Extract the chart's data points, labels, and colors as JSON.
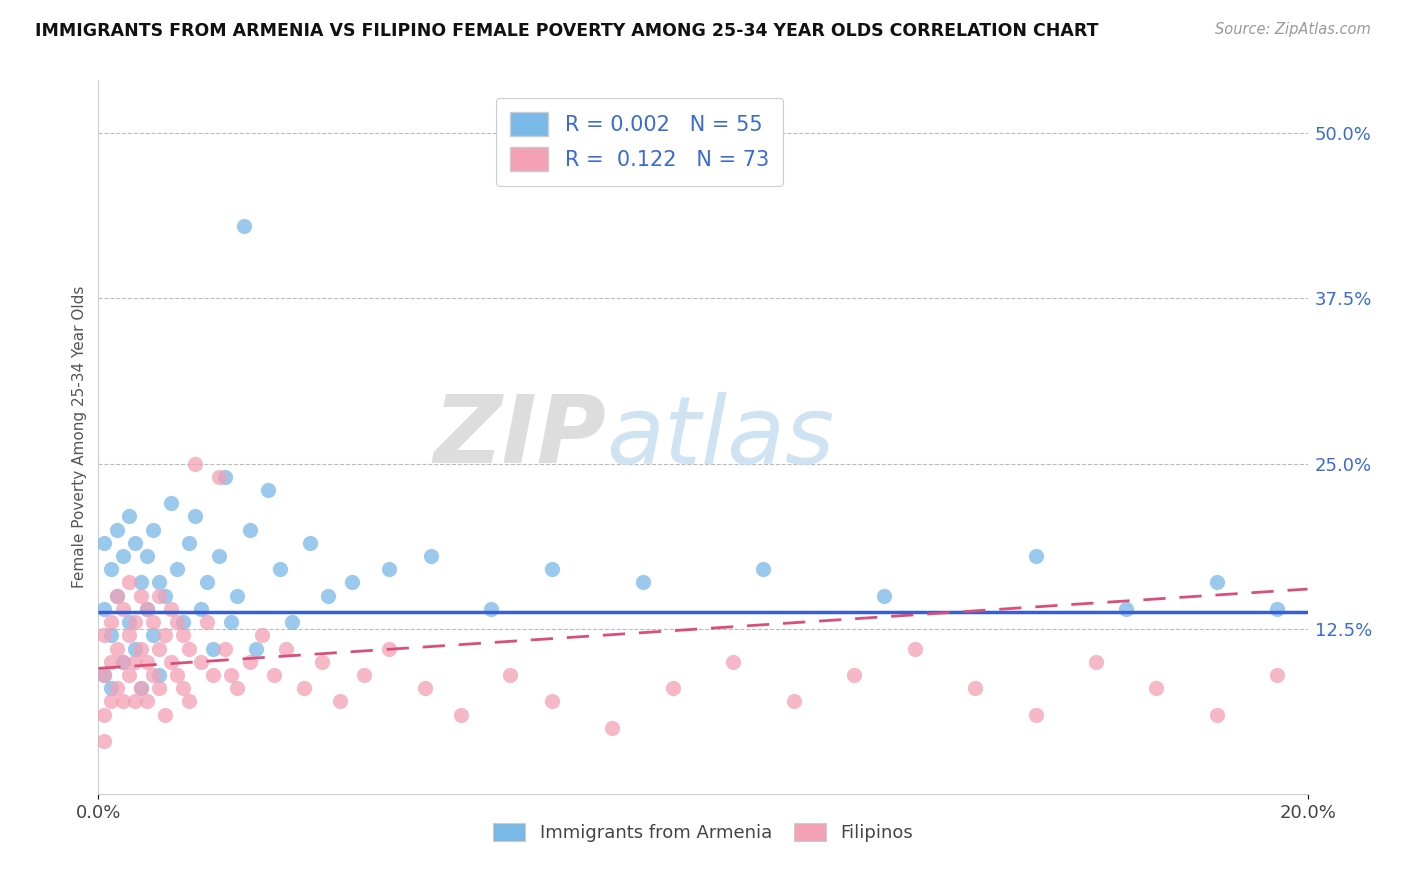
{
  "title": "IMMIGRANTS FROM ARMENIA VS FILIPINO FEMALE POVERTY AMONG 25-34 YEAR OLDS CORRELATION CHART",
  "source_text": "Source: ZipAtlas.com",
  "ylabel": "Female Poverty Among 25-34 Year Olds",
  "xlim": [
    0.0,
    0.2
  ],
  "ylim": [
    0.0,
    0.54
  ],
  "ytick_labels_right": [
    "12.5%",
    "25.0%",
    "37.5%",
    "50.0%"
  ],
  "ytick_positions_right": [
    0.125,
    0.25,
    0.375,
    0.5
  ],
  "legend_r1": "0.002",
  "legend_n1": "55",
  "legend_r2": "0.122",
  "legend_n2": "73",
  "legend_label1": "Immigrants from Armenia",
  "legend_label2": "Filipinos",
  "color_blue": "#7ab8e8",
  "color_pink": "#f4a0b5",
  "color_blue_line": "#3a5fcd",
  "color_pink_line": "#d94f7a",
  "color_text_blue": "#3a6ad4",
  "color_text_dark": "#333333",
  "blue_scatter_x": [
    0.001,
    0.001,
    0.001,
    0.002,
    0.002,
    0.002,
    0.003,
    0.003,
    0.004,
    0.004,
    0.005,
    0.005,
    0.006,
    0.006,
    0.007,
    0.007,
    0.008,
    0.008,
    0.009,
    0.009,
    0.01,
    0.01,
    0.011,
    0.012,
    0.013,
    0.014,
    0.015,
    0.016,
    0.017,
    0.018,
    0.019,
    0.02,
    0.021,
    0.022,
    0.023,
    0.024,
    0.025,
    0.026,
    0.028,
    0.03,
    0.032,
    0.035,
    0.038,
    0.042,
    0.048,
    0.055,
    0.065,
    0.075,
    0.09,
    0.11,
    0.13,
    0.155,
    0.17,
    0.185,
    0.195
  ],
  "blue_scatter_y": [
    0.19,
    0.14,
    0.09,
    0.17,
    0.12,
    0.08,
    0.2,
    0.15,
    0.18,
    0.1,
    0.21,
    0.13,
    0.19,
    0.11,
    0.16,
    0.08,
    0.14,
    0.18,
    0.12,
    0.2,
    0.16,
    0.09,
    0.15,
    0.22,
    0.17,
    0.13,
    0.19,
    0.21,
    0.14,
    0.16,
    0.11,
    0.18,
    0.24,
    0.13,
    0.15,
    0.43,
    0.2,
    0.11,
    0.23,
    0.17,
    0.13,
    0.19,
    0.15,
    0.16,
    0.17,
    0.18,
    0.14,
    0.17,
    0.16,
    0.17,
    0.15,
    0.18,
    0.14,
    0.16,
    0.14
  ],
  "pink_scatter_x": [
    0.001,
    0.001,
    0.001,
    0.001,
    0.002,
    0.002,
    0.002,
    0.003,
    0.003,
    0.003,
    0.004,
    0.004,
    0.004,
    0.005,
    0.005,
    0.005,
    0.006,
    0.006,
    0.006,
    0.007,
    0.007,
    0.007,
    0.008,
    0.008,
    0.008,
    0.009,
    0.009,
    0.01,
    0.01,
    0.01,
    0.011,
    0.011,
    0.012,
    0.012,
    0.013,
    0.013,
    0.014,
    0.014,
    0.015,
    0.015,
    0.016,
    0.017,
    0.018,
    0.019,
    0.02,
    0.021,
    0.022,
    0.023,
    0.025,
    0.027,
    0.029,
    0.031,
    0.034,
    0.037,
    0.04,
    0.044,
    0.048,
    0.054,
    0.06,
    0.068,
    0.075,
    0.085,
    0.095,
    0.105,
    0.115,
    0.125,
    0.135,
    0.145,
    0.155,
    0.165,
    0.175,
    0.185,
    0.195
  ],
  "pink_scatter_y": [
    0.12,
    0.09,
    0.06,
    0.04,
    0.13,
    0.1,
    0.07,
    0.15,
    0.11,
    0.08,
    0.14,
    0.1,
    0.07,
    0.16,
    0.12,
    0.09,
    0.13,
    0.1,
    0.07,
    0.15,
    0.11,
    0.08,
    0.14,
    0.1,
    0.07,
    0.13,
    0.09,
    0.15,
    0.11,
    0.08,
    0.12,
    0.06,
    0.14,
    0.1,
    0.13,
    0.09,
    0.12,
    0.08,
    0.11,
    0.07,
    0.25,
    0.1,
    0.13,
    0.09,
    0.24,
    0.11,
    0.09,
    0.08,
    0.1,
    0.12,
    0.09,
    0.11,
    0.08,
    0.1,
    0.07,
    0.09,
    0.11,
    0.08,
    0.06,
    0.09,
    0.07,
    0.05,
    0.08,
    0.1,
    0.07,
    0.09,
    0.11,
    0.08,
    0.06,
    0.1,
    0.08,
    0.06,
    0.09
  ],
  "blue_trendline_y0": 0.138,
  "blue_trendline_y1": 0.138,
  "pink_trendline_y0": 0.095,
  "pink_trendline_y1": 0.155
}
